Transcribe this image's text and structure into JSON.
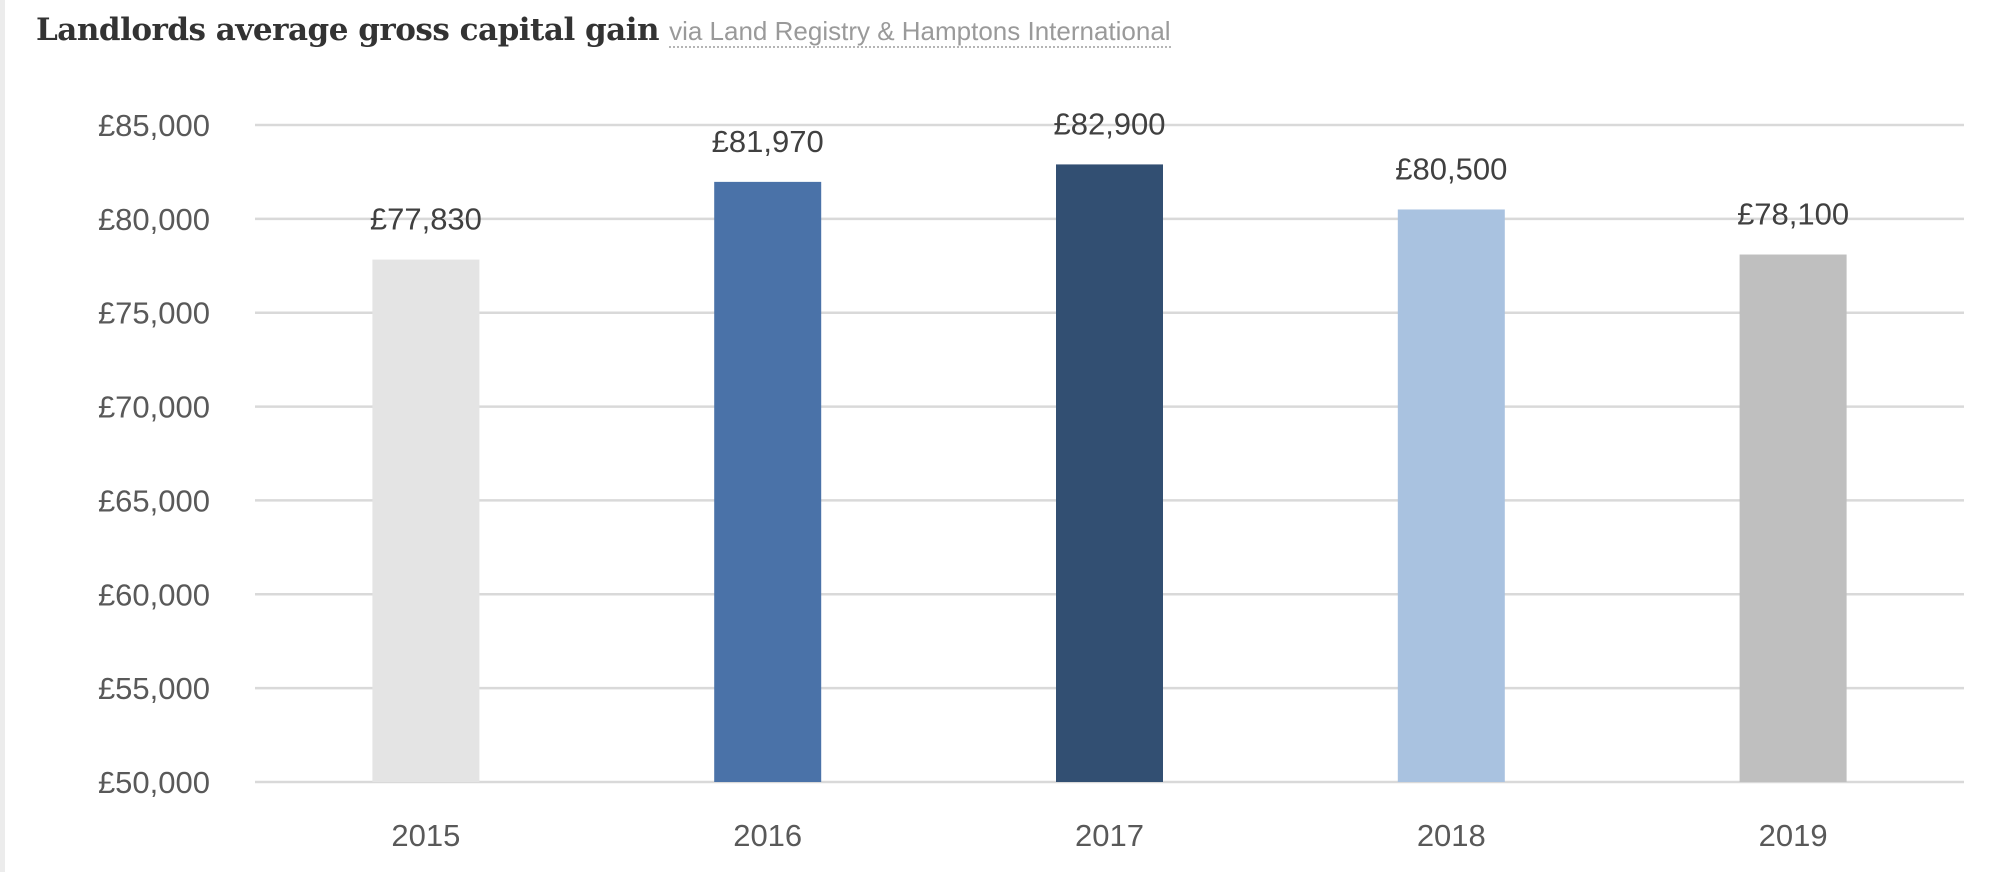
{
  "header": {
    "title": "Landlords average gross capital gain",
    "source": "via Land Registry & Hamptons International"
  },
  "chart_data": {
    "type": "bar",
    "title": "Landlords average gross capital gain",
    "subtitle": "via Land Registry & Hamptons International",
    "xlabel": "",
    "ylabel": "",
    "categories": [
      "2015",
      "2016",
      "2017",
      "2018",
      "2019"
    ],
    "values": [
      77830,
      81970,
      82900,
      80500,
      78100
    ],
    "data_labels": [
      "£77,830",
      "£81,970",
      "£82,900",
      "£80,500",
      "£78,100"
    ],
    "colors": [
      "#e4e4e4",
      "#4a72a8",
      "#324f72",
      "#a9c2e0",
      "#bfbfbf"
    ],
    "ylim": [
      50000,
      85000
    ],
    "yticks": [
      50000,
      55000,
      60000,
      65000,
      70000,
      75000,
      80000,
      85000
    ],
    "ytick_labels": [
      "£50,000",
      "£55,000",
      "£60,000",
      "£65,000",
      "£70,000",
      "£75,000",
      "£80,000",
      "£85,000"
    ],
    "grid": true,
    "legend": "none"
  }
}
